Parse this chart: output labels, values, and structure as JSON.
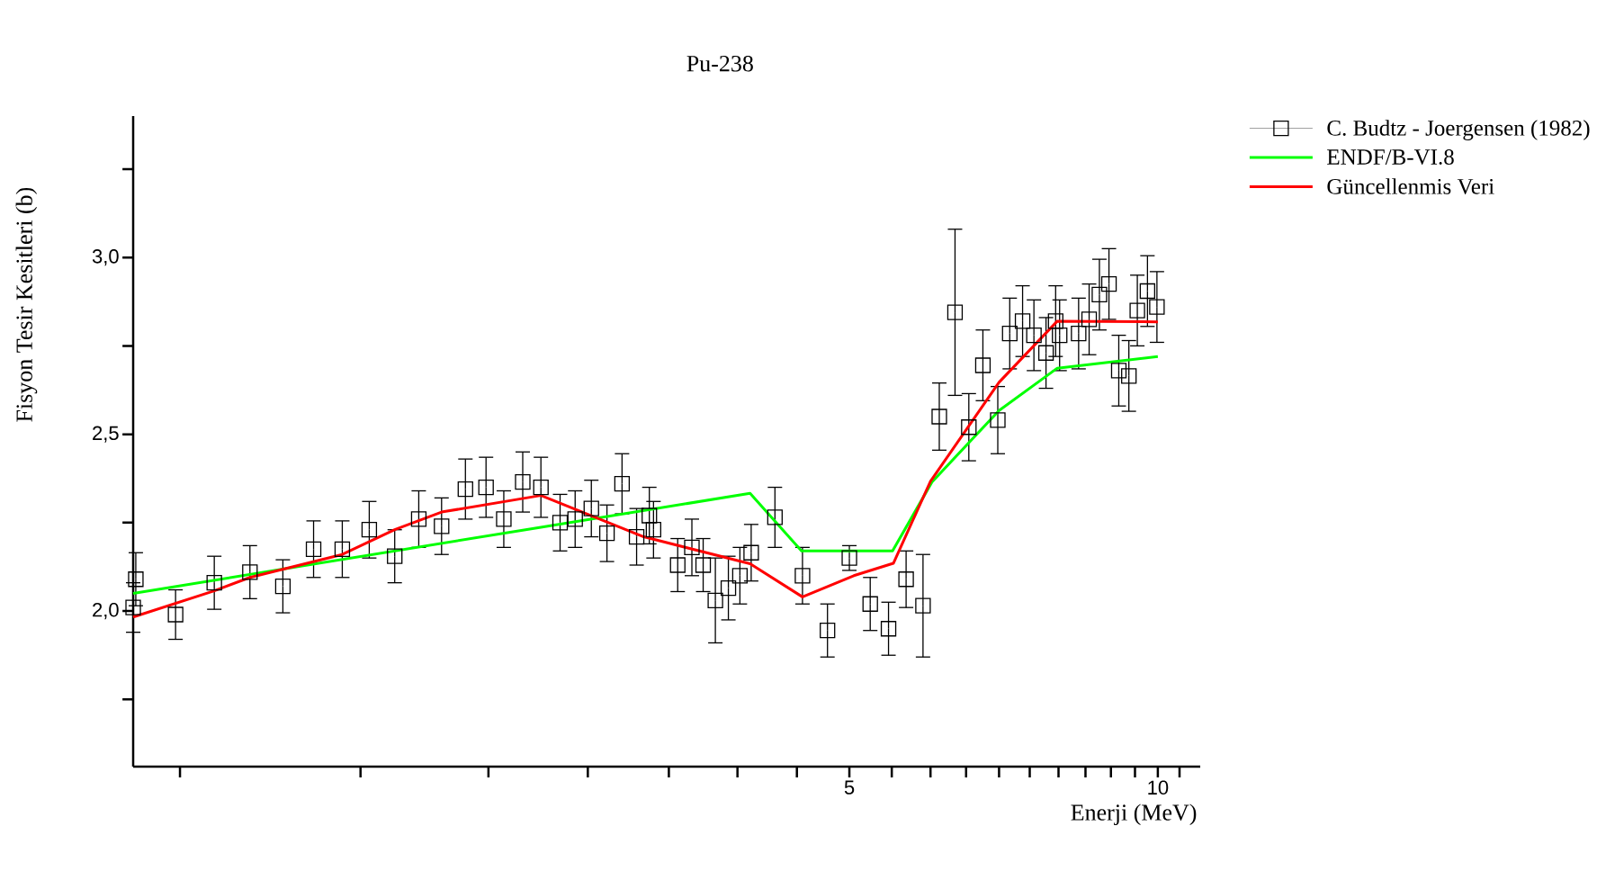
{
  "chart_data": {
    "type": "scatter",
    "title": "Pu-238",
    "xlabel": "Enerji (MeV)",
    "ylabel": "Fisyon Tesir Kesitleri (b)",
    "log": "x",
    "legend": "top right",
    "xlim": [
      1.0,
      11.0
    ],
    "ylim": [
      1.56,
      3.4
    ],
    "xticks": [
      {
        "value": 1.111,
        "label": null
      },
      {
        "value": 1.667,
        "label": null
      },
      {
        "value": 2.222,
        "label": null
      },
      {
        "value": 2.778,
        "label": null
      },
      {
        "value": 3.333,
        "label": null
      },
      {
        "value": 3.889,
        "label": null
      },
      {
        "value": 4.444,
        "label": null
      },
      5,
      {
        "value": 5.5,
        "label": null
      },
      {
        "value": 6,
        "label": null
      },
      {
        "value": 6.5,
        "label": null
      },
      {
        "value": 7,
        "label": null
      },
      {
        "value": 7.5,
        "label": null
      },
      {
        "value": 8,
        "label": null
      },
      {
        "value": 8.5,
        "label": null
      },
      {
        "value": 9,
        "label": null
      },
      {
        "value": 9.5,
        "label": null
      },
      10,
      {
        "value": 10.5,
        "label": null
      }
    ],
    "yticks": [
      {
        "value": 1.75,
        "label": null
      },
      {
        "value": 2.0,
        "label": "2,0"
      },
      {
        "value": 2.25,
        "label": null
      },
      {
        "value": 2.5,
        "label": "2,5"
      },
      {
        "value": 2.75,
        "label": null
      },
      {
        "value": 3.0,
        "label": "3,0"
      },
      {
        "value": 3.25,
        "label": null
      }
    ],
    "series": [
      {
        "name": "C. Budtz - Joergensen (1982)",
        "marker": "square",
        "color": "#000000",
        "x": [
          1.006,
          1.0,
          1.1,
          1.2,
          1.3,
          1.4,
          1.5,
          1.6,
          1.7,
          1.8,
          1.9,
          2.0,
          2.11,
          2.21,
          2.3,
          2.4,
          2.5,
          2.61,
          2.7,
          2.8,
          2.9,
          3.0,
          3.1,
          3.19,
          3.22,
          3.4,
          3.51,
          3.6,
          3.7,
          3.81,
          3.91,
          4.01,
          4.23,
          4.5,
          4.76,
          5.0,
          5.24,
          5.46,
          5.68,
          5.9,
          6.12,
          6.34,
          6.54,
          6.75,
          6.98,
          7.17,
          7.38,
          7.57,
          7.78,
          7.95,
          8.02,
          8.37,
          8.57,
          8.77,
          8.96,
          9.16,
          9.37,
          9.55,
          9.77,
          9.98
        ],
        "values": [
          2.09,
          2.01,
          1.99,
          2.08,
          2.11,
          2.07,
          2.175,
          2.175,
          2.23,
          2.155,
          2.26,
          2.24,
          2.345,
          2.35,
          2.26,
          2.365,
          2.35,
          2.25,
          2.26,
          2.29,
          2.22,
          2.36,
          2.21,
          2.27,
          2.23,
          2.13,
          2.18,
          2.13,
          2.03,
          2.065,
          2.1,
          2.165,
          2.265,
          2.1,
          1.945,
          2.15,
          2.02,
          1.95,
          2.09,
          2.015,
          2.55,
          2.845,
          2.52,
          2.695,
          2.54,
          2.785,
          2.82,
          2.78,
          2.73,
          2.82,
          2.78,
          2.785,
          2.825,
          2.895,
          2.925,
          2.68,
          2.665,
          2.85,
          2.905,
          2.86
        ],
        "errors": [
          0.075,
          0.07,
          0.07,
          0.075,
          0.075,
          0.075,
          0.08,
          0.08,
          0.08,
          0.075,
          0.08,
          0.08,
          0.085,
          0.085,
          0.08,
          0.085,
          0.085,
          0.08,
          0.08,
          0.08,
          0.08,
          0.085,
          0.08,
          0.08,
          0.08,
          0.075,
          0.08,
          0.075,
          0.12,
          0.09,
          0.08,
          0.08,
          0.085,
          0.08,
          0.075,
          0.035,
          0.075,
          0.075,
          0.08,
          0.145,
          0.095,
          0.235,
          0.095,
          0.1,
          0.095,
          0.1,
          0.1,
          0.1,
          0.1,
          0.1,
          0.1,
          0.1,
          0.1,
          0.1,
          0.1,
          0.1,
          0.1,
          0.1,
          0.1,
          0.1
        ]
      },
      {
        "name": "ENDF/B-VI.8",
        "type": "line",
        "marker": "none",
        "color": "#00ff00",
        "x": [
          1.0,
          2.5,
          4.0,
          4.49,
          5.51,
          6.02,
          7.0,
          7.98,
          10.0
        ],
        "values": [
          2.05,
          2.237,
          2.333,
          2.17,
          2.17,
          2.365,
          2.567,
          2.687,
          2.72
        ]
      },
      {
        "name": "Güncellenmis Veri",
        "type": "line",
        "marker": "none",
        "color": "#ff0000",
        "x": [
          1.0,
          1.2,
          1.3,
          1.6,
          1.8,
          2.0,
          2.5,
          3.15,
          4.0,
          4.5,
          5.05,
          5.52,
          6.0,
          7.0,
          7.98,
          10.0
        ],
        "values": [
          1.983,
          2.057,
          2.095,
          2.16,
          2.23,
          2.28,
          2.327,
          2.21,
          2.134,
          2.04,
          2.1,
          2.135,
          2.367,
          2.647,
          2.82,
          2.818
        ]
      }
    ]
  }
}
